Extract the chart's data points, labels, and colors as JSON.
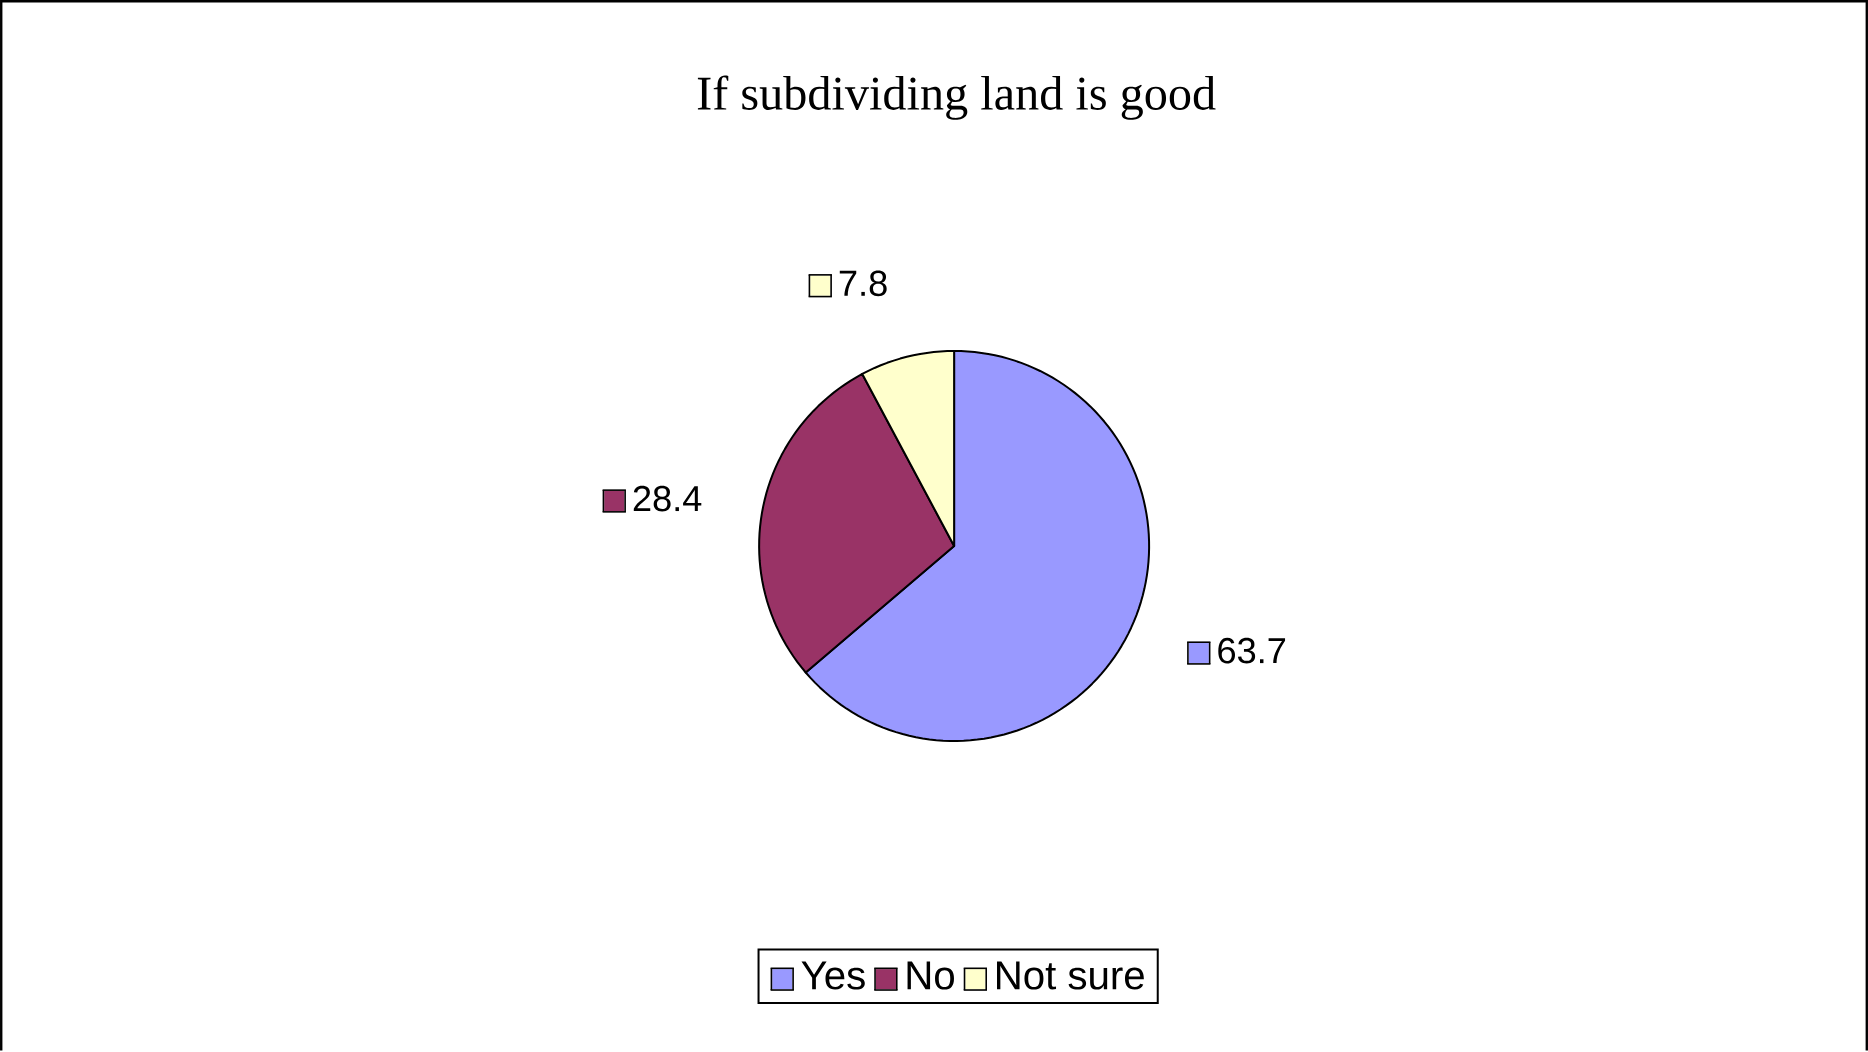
{
  "chart_data": {
    "type": "pie",
    "title": "If subdividing land is good",
    "categories": [
      "Yes",
      "No",
      "Not sure"
    ],
    "values": [
      63.7,
      28.4,
      7.8
    ],
    "colors": [
      "#9999ff",
      "#993366",
      "#ffffcc"
    ],
    "data_labels": true,
    "legend": "bottom"
  }
}
